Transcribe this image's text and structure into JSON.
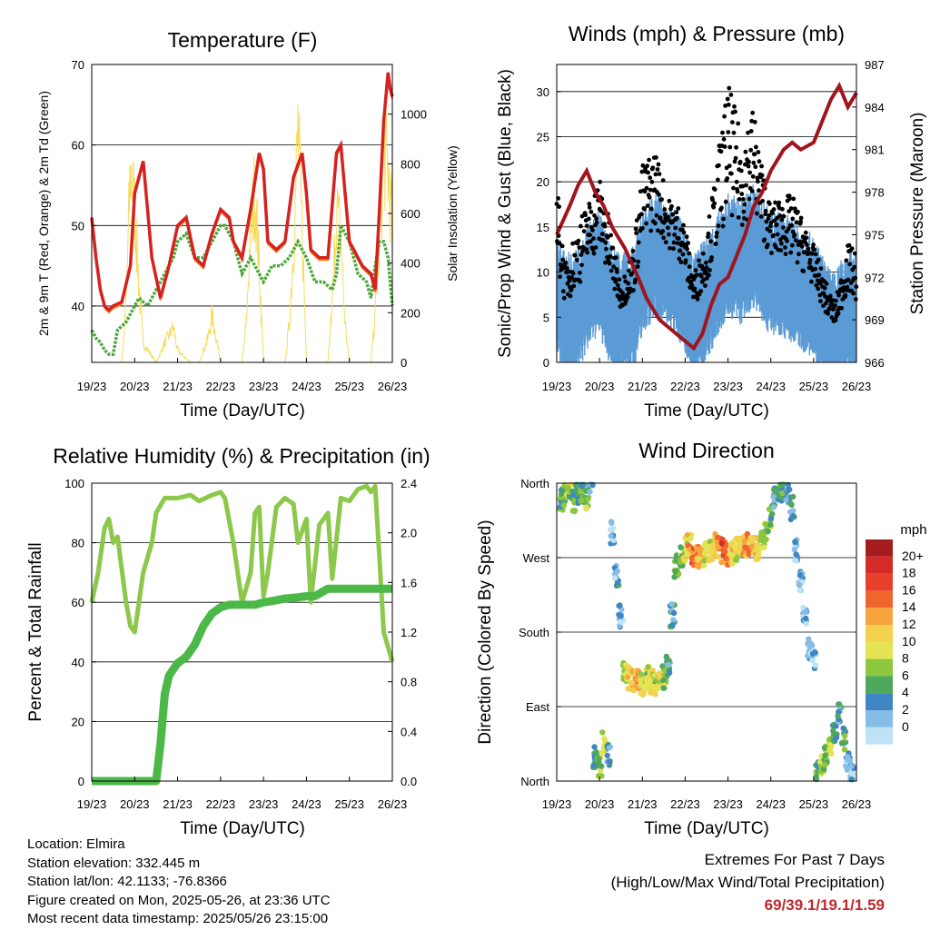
{
  "temperature": {
    "title": "Temperature (F)",
    "ylabel_left": "2m & 9m T (Red, Orange) & 2m Td (Green)",
    "ylabel_right": "Solar Insolation (Yellow)",
    "xlabel": "Time (Day/UTC)",
    "yticks_left": [
      "40",
      "50",
      "60",
      "70"
    ],
    "yticks_right": [
      "0",
      "200",
      "400",
      "600",
      "800",
      "1000"
    ]
  },
  "winds": {
    "title": "Winds (mph) & Pressure (mb)",
    "ylabel_left": "Sonic/Prop Wind & Gust (Blue, Black)",
    "ylabel_right": "Station Pressure (Maroon)",
    "xlabel": "Time (Day/UTC)",
    "yticks_left": [
      "0",
      "5",
      "10",
      "15",
      "20",
      "25",
      "30"
    ],
    "yticks_right": [
      "966",
      "969",
      "972",
      "975",
      "978",
      "981",
      "984",
      "987"
    ]
  },
  "humidity": {
    "title": "Relative Humidity (%) & Precipitation (in)",
    "ylabel_left": "Percent & Total Rainfall",
    "xlabel": "Time (Day/UTC)",
    "yticks_left": [
      "0",
      "20",
      "40",
      "60",
      "80",
      "100"
    ],
    "yticks_right": [
      "0.0",
      "0.4",
      "0.8",
      "1.2",
      "1.6",
      "2.0",
      "2.4"
    ]
  },
  "direction": {
    "title": "Wind Direction",
    "ylabel_left": "Direction (Colored By Speed)",
    "xlabel": "Time (Day/UTC)",
    "yticks_left": [
      "North",
      "East",
      "South",
      "West",
      "North"
    ],
    "legend_title": "mph",
    "legend_labels": [
      "20+",
      "18",
      "16",
      "14",
      "12",
      "10",
      "8",
      "6",
      "4",
      "2",
      "0"
    ],
    "legend_colors": [
      "#a51c1f",
      "#d42a28",
      "#e8402c",
      "#f0642e",
      "#f7a43f",
      "#f3d04d",
      "#e3e354",
      "#8dc63f",
      "#4fa85c",
      "#3f86c2",
      "#86bde6",
      "#bfe3f5"
    ]
  },
  "xticks": [
    "19/23",
    "20/23",
    "21/23",
    "22/23",
    "23/23",
    "24/23",
    "25/23",
    "26/23"
  ],
  "info": {
    "location": "Location: Elmira",
    "elevation": "Station elevation: 332.445 m",
    "latlon": "Station lat/lon: 42.1133; -76.8366",
    "created": "Figure created on Mon, 2025-05-26, at 23:36 UTC",
    "recent": "Most recent data timestamp: 2025/05/26 23:15:00"
  },
  "extremes": {
    "line1": "Extremes For Past 7 Days",
    "line2": "(High/Low/Max Wind/Total Precipitation)",
    "values": "69/39.1/19.1/1.59"
  },
  "colors": {
    "temp2m": "#d7211f",
    "temp9m": "#f28a2e",
    "dewpoint": "#4aa83a",
    "solar": "#f5dc5a",
    "wind": "#5b9bd5",
    "gust": "#000000",
    "pressure": "#a0141e",
    "rh": "#8cc84b",
    "precip": "#4cb848"
  },
  "chart_data": [
    {
      "type": "line",
      "title": "Temperature (F)",
      "xlabel": "Time (Day/UTC)",
      "ylabel": "2m & 9m T (Red, Orange) & 2m Td (Green)",
      "ylabel_right": "Solar Insolation (Yellow)",
      "xlim": [
        0,
        7
      ],
      "ylim": [
        33,
        70
      ],
      "ylim_right": [
        0,
        1200
      ],
      "x_tick_labels": [
        "19/23",
        "20/23",
        "21/23",
        "22/23",
        "23/23",
        "24/23",
        "25/23",
        "26/23"
      ],
      "series": [
        {
          "name": "2m T",
          "axis": "left",
          "x": [
            0,
            0.1,
            0.2,
            0.3,
            0.4,
            0.5,
            0.7,
            0.9,
            1.0,
            1.2,
            1.4,
            1.6,
            1.8,
            2.0,
            2.2,
            2.4,
            2.6,
            2.8,
            3.0,
            3.2,
            3.3,
            3.5,
            3.7,
            3.9,
            4.0,
            4.1,
            4.3,
            4.5,
            4.7,
            4.9,
            5.0,
            5.1,
            5.3,
            5.5,
            5.7,
            5.8,
            6.0,
            6.2,
            6.3,
            6.5,
            6.6,
            6.7,
            6.8,
            6.9,
            6.95,
            7.0
          ],
          "y": [
            51,
            46,
            42,
            40,
            39.5,
            40,
            40.5,
            45,
            54,
            58,
            46,
            41,
            45,
            50,
            51,
            46,
            45,
            49,
            52,
            51,
            48,
            46,
            52,
            59,
            57,
            48,
            47,
            48,
            56,
            59,
            54,
            47,
            46,
            46,
            59,
            60,
            48,
            46,
            45,
            44,
            42,
            52,
            63,
            69,
            67,
            66
          ]
        },
        {
          "name": "Solar",
          "axis": "right",
          "x": [
            0,
            0.5,
            0.7,
            0.8,
            0.9,
            1.0,
            1.1,
            1.2,
            1.5,
            1.7,
            1.9,
            2.0,
            2.3,
            2.5,
            2.7,
            2.8,
            2.9,
            3.0,
            3.3,
            3.5,
            3.6,
            3.7,
            3.8,
            3.9,
            4.0,
            4.3,
            4.5,
            4.6,
            4.7,
            4.8,
            4.9,
            5.0,
            5.3,
            5.5,
            5.6,
            5.7,
            5.8,
            5.9,
            6.0,
            6.3,
            6.5,
            6.6,
            6.7,
            6.8,
            6.9,
            7.0
          ],
          "y": [
            0,
            0,
            0,
            300,
            1000,
            800,
            400,
            100,
            0,
            100,
            180,
            60,
            0,
            0,
            120,
            240,
            130,
            0,
            0,
            0,
            200,
            700,
            900,
            500,
            0,
            0,
            0,
            200,
            600,
            1200,
            700,
            0,
            0,
            0,
            300,
            800,
            650,
            200,
            0,
            0,
            0,
            250,
            600,
            1100,
            1000,
            700
          ]
        },
        {
          "name": "2m Td",
          "axis": "left",
          "x": [
            0,
            0.1,
            0.2,
            0.3,
            0.4,
            0.5,
            0.6,
            0.8,
            1.0,
            1.1,
            1.3,
            1.5,
            1.7,
            1.9,
            2.0,
            2.2,
            2.4,
            2.6,
            2.8,
            3.0,
            3.1,
            3.3,
            3.5,
            3.7,
            3.9,
            4.0,
            4.2,
            4.4,
            4.6,
            4.8,
            5.0,
            5.2,
            5.4,
            5.6,
            5.7,
            5.8,
            6.0,
            6.2,
            6.4,
            6.5,
            6.6,
            6.7,
            6.8,
            6.9,
            7.0
          ],
          "y": [
            37,
            36,
            35.5,
            34.5,
            34,
            34,
            37,
            38,
            40,
            41,
            40,
            42,
            44,
            46,
            48,
            49,
            46,
            46,
            48,
            50,
            50,
            48,
            44,
            46,
            44,
            43,
            45,
            45,
            46,
            48,
            46,
            43,
            43,
            42,
            44,
            50,
            48,
            44,
            43,
            41,
            45,
            48,
            48,
            46,
            40
          ]
        }
      ]
    },
    {
      "type": "scatter",
      "title": "Winds (mph) & Pressure (mb)",
      "xlabel": "Time (Day/UTC)",
      "ylabel": "Sonic/Prop Wind & Gust (Blue, Black)",
      "ylabel_right": "Station Pressure (Maroon)",
      "xlim": [
        0,
        7
      ],
      "ylim": [
        0,
        33
      ],
      "ylim_right": [
        966,
        987
      ],
      "series": [
        {
          "name": "Wind",
          "axis": "left",
          "style": "band",
          "x": [
            0,
            0.2,
            0.5,
            0.8,
            1.0,
            1.2,
            1.5,
            1.8,
            2.0,
            2.3,
            2.6,
            2.9,
            3.0,
            3.2,
            3.5,
            3.8,
            4.0,
            4.3,
            4.6,
            4.8,
            5.0,
            5.2,
            5.5,
            5.8,
            6.0,
            6.3,
            6.5,
            6.8,
            7.0
          ],
          "y": [
            8,
            5,
            6,
            9,
            10,
            7,
            5,
            6,
            10,
            12,
            11,
            9,
            8,
            5,
            7,
            10,
            12,
            11,
            13,
            11,
            10,
            10,
            9,
            8,
            7,
            4,
            3,
            6,
            5
          ]
        },
        {
          "name": "Gust",
          "axis": "left",
          "style": "points",
          "x": [
            0,
            0.2,
            0.5,
            0.8,
            1.0,
            1.2,
            1.5,
            1.8,
            2.0,
            2.3,
            2.6,
            2.9,
            3.0,
            3.2,
            3.5,
            3.8,
            4.0,
            4.3,
            4.6,
            4.8,
            5.0,
            5.2,
            5.5,
            5.8,
            6.0,
            6.3,
            6.5,
            6.8,
            7.0
          ],
          "y": [
            18,
            10,
            14,
            17,
            19,
            15,
            8,
            12,
            20,
            22,
            17,
            16,
            14,
            9,
            13,
            22,
            28,
            23,
            26,
            20,
            16,
            17,
            17,
            14,
            12,
            8,
            6,
            12,
            11
          ]
        },
        {
          "name": "Pressure",
          "axis": "right",
          "x": [
            0,
            0.3,
            0.5,
            0.7,
            0.9,
            1.1,
            1.3,
            1.6,
            1.9,
            2.1,
            2.4,
            2.6,
            2.8,
            3.0,
            3.2,
            3.4,
            3.6,
            3.8,
            4.0,
            4.2,
            4.4,
            4.6,
            4.8,
            5.0,
            5.3,
            5.5,
            5.7,
            6.0,
            6.2,
            6.4,
            6.6,
            6.8,
            7.0
          ],
          "y": [
            975,
            977,
            978.5,
            979.5,
            978,
            977,
            975.5,
            974,
            972,
            970.5,
            969,
            968.5,
            968,
            967.5,
            967,
            968,
            970,
            971.5,
            972,
            973.5,
            975,
            977,
            978,
            979.5,
            981,
            981.5,
            981,
            981.5,
            983,
            984.5,
            985.5,
            984,
            985
          ]
        }
      ]
    },
    {
      "type": "line",
      "title": "Relative Humidity (%) & Precipitation (in)",
      "xlabel": "Time (Day/UTC)",
      "ylabel": "Percent & Total Rainfall",
      "xlim": [
        0,
        7
      ],
      "ylim": [
        0,
        100
      ],
      "ylim_right": [
        0,
        2.4
      ],
      "series": [
        {
          "name": "RH",
          "axis": "left",
          "x": [
            0,
            0.15,
            0.3,
            0.4,
            0.5,
            0.6,
            0.8,
            0.9,
            1.0,
            1.1,
            1.2,
            1.4,
            1.5,
            1.7,
            2.0,
            2.3,
            2.5,
            2.8,
            3.0,
            3.1,
            3.3,
            3.5,
            3.7,
            3.8,
            3.9,
            4.0,
            4.1,
            4.3,
            4.5,
            4.7,
            4.8,
            5.0,
            5.1,
            5.3,
            5.5,
            5.6,
            5.8,
            6.0,
            6.2,
            6.4,
            6.5,
            6.6,
            6.7,
            6.8,
            6.9,
            7.0
          ],
          "y": [
            60,
            70,
            85,
            88,
            80,
            82,
            60,
            52,
            50,
            60,
            70,
            80,
            90,
            95,
            95,
            96,
            94,
            96,
            97,
            95,
            80,
            60,
            70,
            90,
            92,
            62,
            70,
            92,
            95,
            93,
            80,
            88,
            60,
            86,
            90,
            68,
            95,
            94,
            98,
            99,
            97,
            99,
            75,
            50,
            45,
            40
          ]
        },
        {
          "name": "Precipitation",
          "axis": "right",
          "x": [
            0,
            0.5,
            1.0,
            1.5,
            1.6,
            1.7,
            1.8,
            1.9,
            2.0,
            2.2,
            2.4,
            2.6,
            2.8,
            3.0,
            3.2,
            3.5,
            3.8,
            4.0,
            4.2,
            4.5,
            4.8,
            5.0,
            5.2,
            5.5,
            5.8,
            6.0,
            6.3,
            6.5,
            7.0
          ],
          "y": [
            0,
            0,
            0,
            0,
            0.3,
            0.7,
            0.85,
            0.9,
            0.95,
            1.0,
            1.1,
            1.25,
            1.35,
            1.4,
            1.42,
            1.42,
            1.42,
            1.44,
            1.45,
            1.47,
            1.48,
            1.49,
            1.49,
            1.55,
            1.55,
            1.55,
            1.55,
            1.55,
            1.55
          ]
        }
      ]
    },
    {
      "type": "scatter",
      "title": "Wind Direction",
      "xlabel": "Time (Day/UTC)",
      "ylabel": "Direction (Colored By Speed)",
      "xlim": [
        0,
        7
      ],
      "ylim": [
        0,
        360
      ],
      "y_tick_labels": [
        "North",
        "East",
        "South",
        "West",
        "North"
      ],
      "color_scale_label": "mph",
      "series": [
        {
          "name": "Direction",
          "x": [
            0.1,
            0.2,
            0.3,
            0.4,
            0.5,
            0.6,
            0.7,
            0.8,
            0.9,
            1.0,
            1.1,
            1.2,
            1.3,
            1.4,
            1.5,
            1.6,
            1.7,
            1.8,
            1.9,
            2.0,
            2.1,
            2.2,
            2.3,
            2.4,
            2.5,
            2.6,
            2.7,
            2.8,
            2.9,
            3.0,
            3.1,
            3.2,
            3.3,
            3.4,
            3.5,
            3.6,
            3.7,
            3.8,
            3.9,
            4.0,
            4.1,
            4.2,
            4.3,
            4.4,
            4.5,
            4.6,
            4.7,
            4.8,
            4.9,
            5.0,
            5.1,
            5.2,
            5.3,
            5.4,
            5.5,
            5.6,
            5.7,
            5.8,
            5.9,
            6.0,
            6.1,
            6.2,
            6.3,
            6.4,
            6.5,
            6.6,
            6.7,
            6.8,
            6.9
          ],
          "y": [
            340,
            345,
            350,
            338,
            350,
            348,
            340,
            355,
            30,
            20,
            45,
            30,
            300,
            250,
            200,
            130,
            125,
            122,
            120,
            118,
            125,
            120,
            118,
            122,
            125,
            140,
            200,
            260,
            270,
            280,
            285,
            275,
            270,
            272,
            278,
            280,
            285,
            282,
            278,
            274,
            276,
            280,
            282,
            284,
            285,
            282,
            278,
            290,
            300,
            320,
            340,
            350,
            355,
            350,
            330,
            280,
            240,
            200,
            160,
            150,
            10,
            20,
            30,
            40,
            60,
            80,
            50,
            20,
            10
          ],
          "speed": [
            6,
            8,
            9,
            7,
            5,
            6,
            8,
            4,
            6,
            7,
            9,
            4,
            2,
            3,
            3,
            8,
            11,
            12,
            14,
            10,
            9,
            11,
            9,
            10,
            7,
            5,
            4,
            6,
            7,
            9,
            13,
            16,
            14,
            12,
            10,
            11,
            12,
            15,
            17,
            14,
            11,
            10,
            12,
            13,
            14,
            12,
            10,
            9,
            8,
            7,
            4,
            5,
            6,
            3,
            4,
            2,
            3,
            2,
            3,
            2,
            6,
            8,
            7,
            9,
            5,
            4,
            6,
            3,
            2
          ]
        }
      ]
    }
  ]
}
